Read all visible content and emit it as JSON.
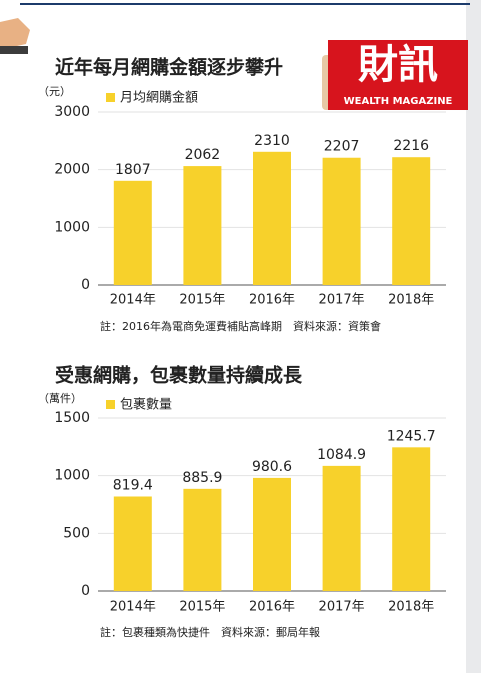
{
  "logo": {
    "title": "財訊",
    "subtitle": "WEALTH MAGAZINE"
  },
  "chart_data": [
    {
      "type": "bar",
      "title": "近年每月網購金額逐步攀升",
      "y_unit": "（元）",
      "legend": "月均網購金額",
      "categories": [
        "2014年",
        "2015年",
        "2016年",
        "2017年",
        "2018年"
      ],
      "series": [
        {
          "name": "月均網購金額",
          "color": "#f7d12b",
          "values": [
            1807,
            2062,
            2310,
            2207,
            2216
          ]
        }
      ],
      "ylim": [
        0,
        3000
      ],
      "yticks": [
        0,
        1000,
        2000,
        3000
      ],
      "grid": true,
      "note": "註：2016年為電商免運費補貼高峰期　資料來源：資策會"
    },
    {
      "type": "bar",
      "title": "受惠網購，包裹數量持續成長",
      "y_unit": "（萬件）",
      "legend": "包裹數量",
      "categories": [
        "2014年",
        "2015年",
        "2016年",
        "2017年",
        "2018年"
      ],
      "series": [
        {
          "name": "包裹數量",
          "color": "#f7d12b",
          "values": [
            819.4,
            885.9,
            980.6,
            1084.9,
            1245.7
          ]
        }
      ],
      "ylim": [
        0,
        1500
      ],
      "yticks": [
        0,
        500,
        1000,
        1500
      ],
      "grid": true,
      "note": "註：包裹種類為快捷件　資料來源：郵局年報"
    }
  ]
}
